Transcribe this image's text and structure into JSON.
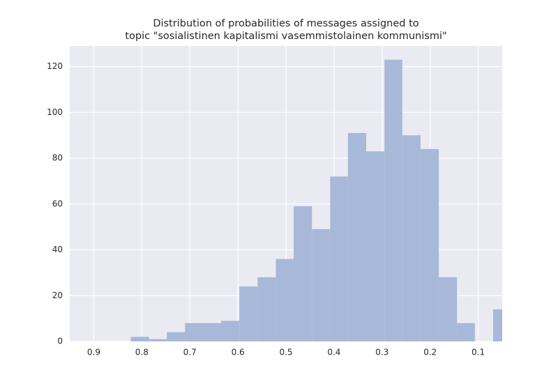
{
  "chart_data": {
    "type": "histogram",
    "title": [
      "Distribution of probabilities of messages assigned to",
      "topic \"sosialistinen kapitalismi vasemmistolainen kommunismi\""
    ],
    "bins": [
      0.823,
      0.785,
      0.748,
      0.71,
      0.672,
      0.635,
      0.597,
      0.559,
      0.521,
      0.484,
      0.446,
      0.408,
      0.371,
      0.333,
      0.295,
      0.258,
      0.22,
      0.182,
      0.144,
      0.107,
      0.069,
      0.031
    ],
    "values": [
      2,
      1,
      4,
      8,
      8,
      9,
      24,
      28,
      36,
      59,
      49,
      72,
      91,
      83,
      123,
      90,
      84,
      28,
      8,
      0,
      14
    ],
    "color": "#a8b8d8",
    "xlim": [
      0.95,
      0.05
    ],
    "xticks": [
      0.9,
      0.8,
      0.7,
      0.6,
      0.5,
      0.4,
      0.3,
      0.2,
      0.1
    ],
    "ylim": [
      0,
      129
    ],
    "yticks": [
      0,
      20,
      40,
      60,
      80,
      100,
      120
    ],
    "grid": true
  }
}
